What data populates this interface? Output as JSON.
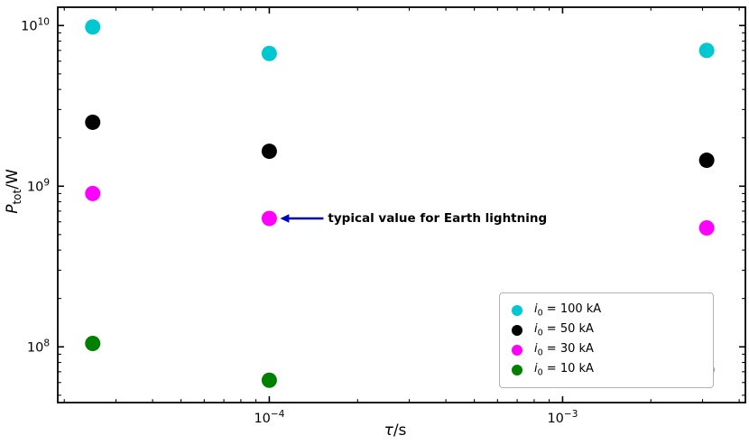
{
  "figure": {
    "background": "#ffffff"
  },
  "labels": {
    "ylabel": {
      "main": "P",
      "sub": "tot",
      "unit": "/W"
    },
    "xlabel": {
      "main": "τ",
      "unit": "/s"
    },
    "annotation_text": "typical value for Earth lightning",
    "x_ticks": [
      {
        "base": "10",
        "exp": "−4"
      },
      {
        "base": "10",
        "exp": "−3"
      }
    ],
    "y_ticks": [
      {
        "base": "10",
        "exp": "8"
      },
      {
        "base": "10",
        "exp": "9"
      },
      {
        "base": "10",
        "exp": "10"
      }
    ],
    "legend_entries": [
      {
        "var": "i",
        "sub": "0",
        "rest": " = 100 kA",
        "color": "#00c8d1"
      },
      {
        "var": "i",
        "sub": "0",
        "rest": " = 50 kA",
        "color": "#000000"
      },
      {
        "var": "i",
        "sub": "0",
        "rest": " = 30 kA",
        "color": "#ff00ff"
      },
      {
        "var": "i",
        "sub": "0",
        "rest": " = 10 kA",
        "color": "#008000"
      }
    ]
  },
  "chart_data": {
    "type": "scatter",
    "title": "",
    "xlabel": "τ/s",
    "ylabel": "P_tot/W",
    "x_scale": "log",
    "y_scale": "log",
    "xlim": [
      1.9e-05,
      0.0042
    ],
    "ylim": [
      45000000.0,
      13000000000.0
    ],
    "grid": false,
    "x": [
      2.5e-05,
      0.0001,
      0.0031
    ],
    "series": [
      {
        "name": "i0 = 100 kA",
        "color": "#00c8d1",
        "values": [
          9800000000.0,
          6700000000.0,
          7000000000.0
        ]
      },
      {
        "name": "i0 = 50 kA",
        "color": "#000000",
        "values": [
          2500000000.0,
          1650000000.0,
          1450000000.0
        ]
      },
      {
        "name": "i0 = 30 kA",
        "color": "#ff00ff",
        "values": [
          900000000.0,
          630000000.0,
          550000000.0
        ]
      },
      {
        "name": "i0 = 10 kA",
        "color": "#008000",
        "values": [
          105000000.0,
          62000000.0,
          72000000.0
        ]
      }
    ],
    "x_major_ticks": [
      0.0001,
      0.001
    ],
    "y_major_ticks": [
      100000000.0,
      1000000000.0,
      10000000000.0
    ],
    "marker_size_px": 17,
    "legend_position": "lower right",
    "annotation": {
      "text": "typical value for Earth lightning",
      "target_x": 0.0001,
      "target_y": 630000000.0,
      "arrow_color": "#0000cd",
      "text_color": "#000000"
    }
  }
}
